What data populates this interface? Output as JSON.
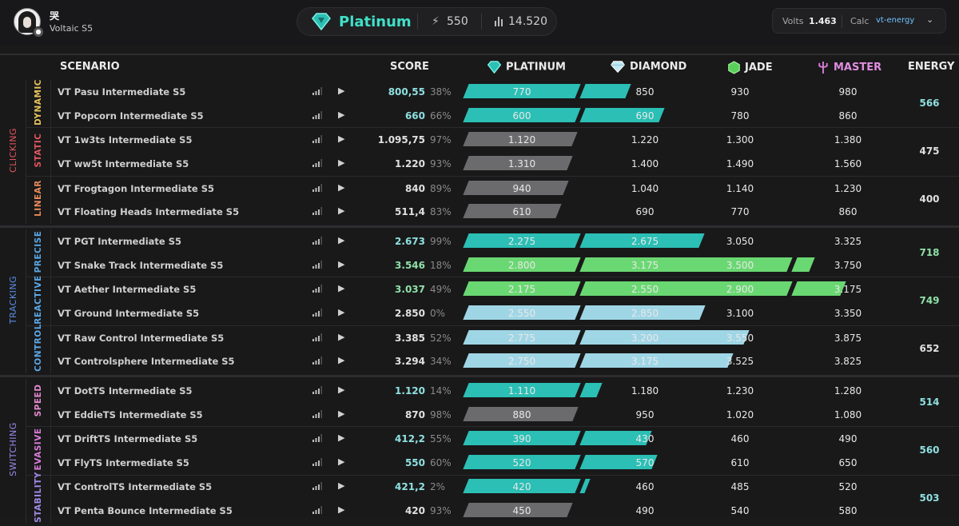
{
  "profile": {
    "username": "哭",
    "season": "Voltaic S5"
  },
  "rank": {
    "name": "Platinum",
    "energy": "550",
    "score": "14.520"
  },
  "calc": {
    "volts_label": "Volts",
    "volts_value": "1.463",
    "calc_label": "Calc",
    "calc_value": "vt-energy"
  },
  "headers": {
    "scenario": "SCENARIO",
    "score": "SCORE",
    "ranks": [
      "PLATINUM",
      "DIAMOND",
      "JADE",
      "MASTER"
    ],
    "energy": "ENERGY"
  },
  "colors": {
    "platinum": "#2bbfb5",
    "diamond": "#9fd6e6",
    "jade": "#6ad872",
    "master": "#d87bd8",
    "grey": "#6b6b6d"
  },
  "categories": [
    {
      "name": "CLICKING",
      "color": "#e0565e",
      "subs": [
        {
          "name": "DYNAMIC",
          "color": "#e6c15a",
          "energy": "566",
          "energy_color": "#8fe0df",
          "rows": [
            {
              "name": "VT Pasu Intermediate S5",
              "score": "800,55",
              "pct": "38%",
              "score_color": "#8fe0df",
              "thresholds": [
                "770",
                "850",
                "930",
                "980"
              ],
              "fills": [
                1,
                0.38,
                0,
                0
              ],
              "fill_color": "#2bbfb5"
            },
            {
              "name": "VT Popcorn Intermediate S5",
              "score": "660",
              "pct": "66%",
              "score_color": "#8fe0df",
              "thresholds": [
                "600",
                "690",
                "780",
                "860"
              ],
              "fills": [
                1,
                0.66,
                0,
                0
              ],
              "fill_color": "#2bbfb5"
            }
          ]
        },
        {
          "name": "STATIC",
          "color": "#e0565e",
          "energy": "475",
          "energy_color": "#e0e0e0",
          "rows": [
            {
              "name": "VT 1w3ts Intermediate S5",
              "score": "1.095,75",
              "pct": "97%",
              "score_color": "#e0e0e0",
              "thresholds": [
                "1.120",
                "1.220",
                "1.300",
                "1.380"
              ],
              "fills": [
                0.97,
                0,
                0,
                0
              ],
              "fill_color": "#6b6b6d"
            },
            {
              "name": "VT ww5t Intermediate S5",
              "score": "1.220",
              "pct": "93%",
              "score_color": "#e0e0e0",
              "thresholds": [
                "1.310",
                "1.400",
                "1.490",
                "1.560"
              ],
              "fills": [
                0.93,
                0,
                0,
                0
              ],
              "fill_color": "#6b6b6d"
            }
          ]
        },
        {
          "name": "LINEAR",
          "color": "#e88a5a",
          "energy": "400",
          "energy_color": "#e0e0e0",
          "rows": [
            {
              "name": "VT Frogtagon Intermediate S5",
              "score": "840",
              "pct": "89%",
              "score_color": "#e0e0e0",
              "thresholds": [
                "940",
                "1.040",
                "1.140",
                "1.230"
              ],
              "fills": [
                0.89,
                0,
                0,
                0
              ],
              "fill_color": "#6b6b6d"
            },
            {
              "name": "VT Floating Heads Intermediate S5",
              "score": "511,4",
              "pct": "83%",
              "score_color": "#e0e0e0",
              "thresholds": [
                "610",
                "690",
                "770",
                "860"
              ],
              "fills": [
                0.83,
                0,
                0,
                0
              ],
              "fill_color": "#6b6b6d"
            }
          ]
        }
      ]
    },
    {
      "name": "TRACKING",
      "color": "#5a8fe6",
      "subs": [
        {
          "name": "PRECISE",
          "color": "#5aa8e6",
          "energy": "718",
          "energy_color": "#8fe0a6",
          "rows": [
            {
              "name": "VT PGT Intermediate S5",
              "score": "2.673",
              "pct": "99%",
              "score_color": "#8fe0df",
              "thresholds": [
                "2.275",
                "2.675",
                "3.050",
                "3.325"
              ],
              "fills": [
                1,
                0.99,
                0,
                0
              ],
              "fill_color": "#2bbfb5"
            },
            {
              "name": "VT Snake Track Intermediate S5",
              "score": "3.546",
              "pct": "18%",
              "score_color": "#8fe0a6",
              "thresholds": [
                "2.800",
                "3.175",
                "3.500",
                "3.750"
              ],
              "fills": [
                1,
                1,
                1,
                0.18
              ],
              "fill_color": "#6ad872"
            }
          ]
        },
        {
          "name": "REACTIVE",
          "color": "#5aa8e6",
          "energy": "749",
          "energy_color": "#8fe0a6",
          "rows": [
            {
              "name": "VT Aether Intermediate S5",
              "score": "3.037",
              "pct": "49%",
              "score_color": "#8fe0a6",
              "thresholds": [
                "2.175",
                "2.550",
                "2.900",
                "3.175"
              ],
              "fills": [
                1,
                1,
                1,
                0.49
              ],
              "fill_color": "#6ad872"
            },
            {
              "name": "VT Ground Intermediate S5",
              "score": "2.850",
              "pct": "0%",
              "score_color": "#e0e0e0",
              "thresholds": [
                "2.550",
                "2.850",
                "3.100",
                "3.350"
              ],
              "fills": [
                1,
                1,
                0,
                0
              ],
              "fill_color": "#9fd6e6"
            }
          ]
        },
        {
          "name": "CONTROL",
          "color": "#5aa8e6",
          "energy": "652",
          "energy_color": "#e0e0e0",
          "rows": [
            {
              "name": "VT Raw Control Intermediate S5",
              "score": "3.385",
              "pct": "52%",
              "score_color": "#e0e0e0",
              "thresholds": [
                "2.775",
                "3.200",
                "3.550",
                "3.875"
              ],
              "fills": [
                1,
                1,
                0.52,
                0
              ],
              "fill_color": "#9fd6e6"
            },
            {
              "name": "VT Controlsphere Intermediate S5",
              "score": "3.294",
              "pct": "34%",
              "score_color": "#e0e0e0",
              "thresholds": [
                "2.750",
                "3.175",
                "3.525",
                "3.825"
              ],
              "fills": [
                1,
                1,
                0.34,
                0
              ],
              "fill_color": "#9fd6e6"
            }
          ]
        }
      ]
    },
    {
      "name": "SWITCHING",
      "color": "#9a8ae6",
      "subs": [
        {
          "name": "SPEED",
          "color": "#e68ad0",
          "energy": "514",
          "energy_color": "#8fe0df",
          "rows": [
            {
              "name": "VT DotTS Intermediate S5",
              "score": "1.120",
              "pct": "14%",
              "score_color": "#8fe0df",
              "thresholds": [
                "1.110",
                "1.180",
                "1.230",
                "1.280"
              ],
              "fills": [
                1,
                0.14,
                0,
                0
              ],
              "fill_color": "#2bbfb5"
            },
            {
              "name": "VT EddieTS Intermediate S5",
              "score": "870",
              "pct": "98%",
              "score_color": "#e0e0e0",
              "thresholds": [
                "880",
                "950",
                "1.020",
                "1.080"
              ],
              "fills": [
                0.98,
                0,
                0,
                0
              ],
              "fill_color": "#6b6b6d"
            }
          ]
        },
        {
          "name": "EVASIVE",
          "color": "#d87bd8",
          "energy": "560",
          "energy_color": "#8fe0df",
          "rows": [
            {
              "name": "VT DriftTS Intermediate S5",
              "score": "412,2",
              "pct": "55%",
              "score_color": "#8fe0df",
              "thresholds": [
                "390",
                "430",
                "460",
                "490"
              ],
              "fills": [
                1,
                0.55,
                0,
                0
              ],
              "fill_color": "#2bbfb5"
            },
            {
              "name": "VT FlyTS Intermediate S5",
              "score": "550",
              "pct": "60%",
              "score_color": "#8fe0df",
              "thresholds": [
                "520",
                "570",
                "610",
                "650"
              ],
              "fills": [
                1,
                0.6,
                0,
                0
              ],
              "fill_color": "#2bbfb5"
            }
          ]
        },
        {
          "name": "STABILITY",
          "color": "#a08ae6",
          "energy": "503",
          "energy_color": "#8fe0df",
          "rows": [
            {
              "name": "VT ControlTS Intermediate S5",
              "score": "421,2",
              "pct": "2%",
              "score_color": "#8fe0df",
              "thresholds": [
                "420",
                "460",
                "485",
                "520"
              ],
              "fills": [
                1,
                0.02,
                0,
                0
              ],
              "fill_color": "#2bbfb5"
            },
            {
              "name": "VT Penta Bounce Intermediate S5",
              "score": "420",
              "pct": "93%",
              "score_color": "#e0e0e0",
              "thresholds": [
                "450",
                "490",
                "540",
                "580"
              ],
              "fills": [
                0.93,
                0,
                0,
                0
              ],
              "fill_color": "#6b6b6d"
            }
          ]
        }
      ]
    }
  ]
}
